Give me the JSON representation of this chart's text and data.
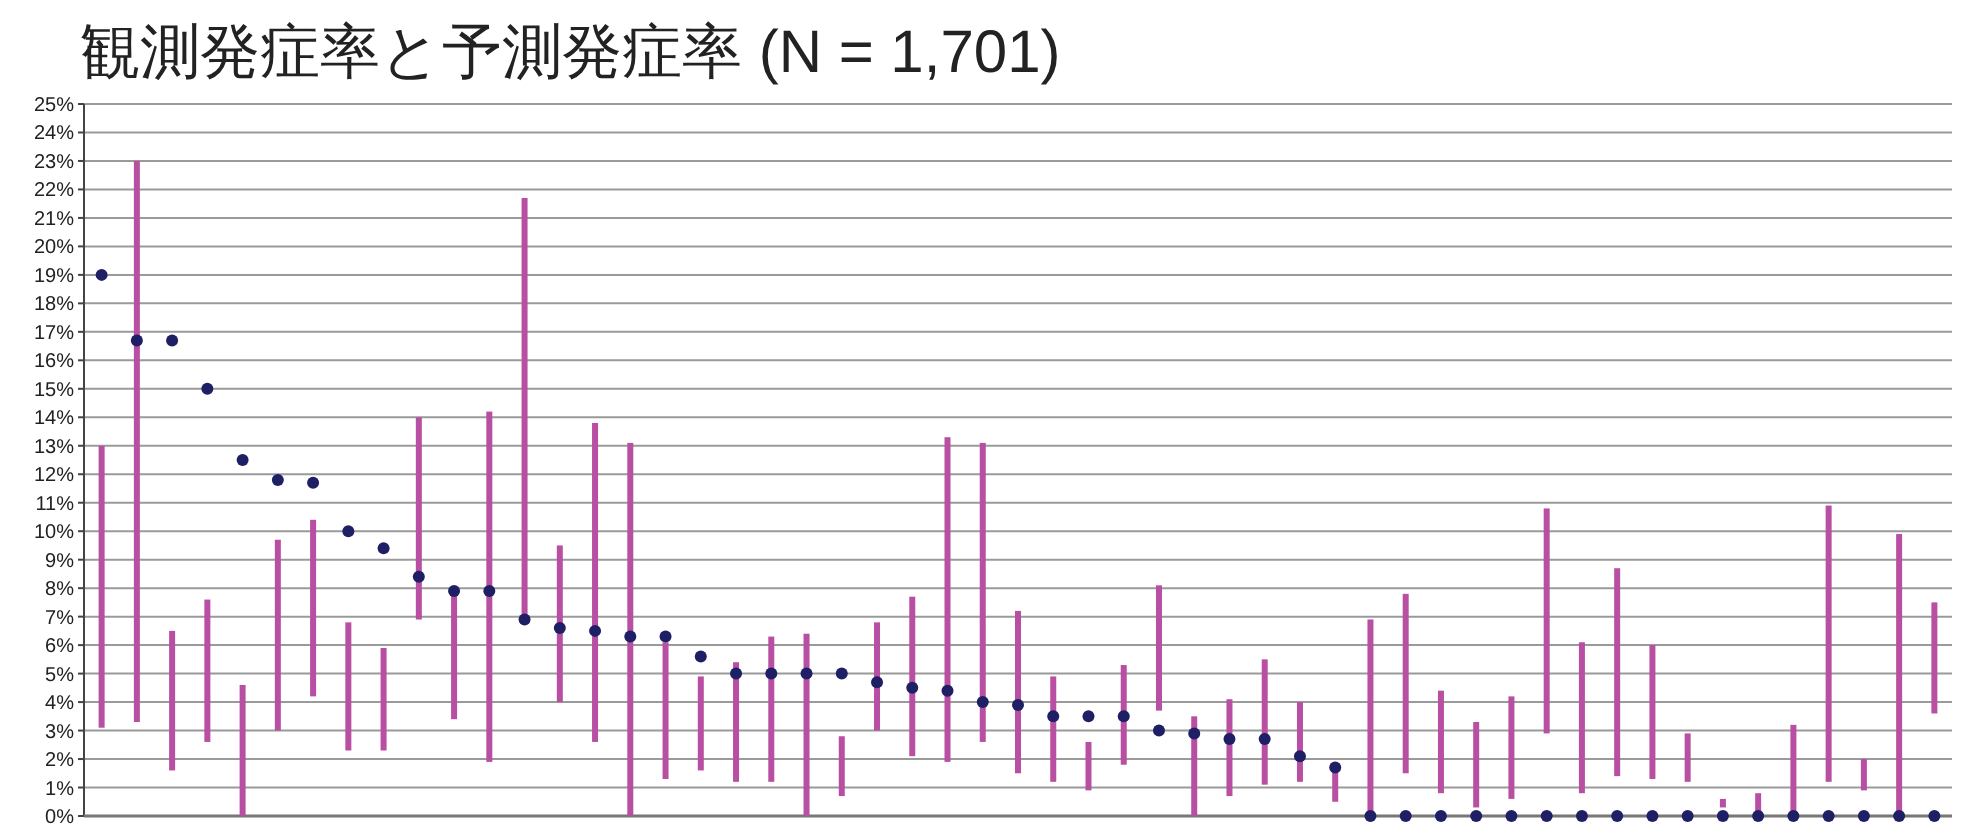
{
  "chart_data": {
    "type": "scatter",
    "title": "観測発症率と予測発症率 (N = 1,701)",
    "categories": [
      null,
      null,
      null,
      null,
      null,
      null,
      null,
      null,
      null,
      null,
      null,
      null,
      null,
      null,
      null,
      null,
      null,
      null,
      null,
      null,
      null,
      null,
      null,
      null,
      null,
      null,
      null,
      null,
      null,
      null,
      null,
      null,
      null,
      null,
      null,
      null,
      null,
      null,
      null,
      null,
      null,
      null,
      null,
      null,
      null,
      null,
      null,
      null,
      null,
      null,
      null,
      null,
      null
    ],
    "series": [
      {
        "type": "bar",
        "color": "#b94fa3",
        "base": [
          3.1,
          3.3,
          1.6,
          2.6,
          0,
          3.0,
          4.2,
          2.3,
          2.3,
          6.9,
          3.4,
          1.9,
          6.9,
          4.0,
          2.6,
          0,
          1.3,
          1.6,
          1.2,
          1.2,
          0,
          0.7,
          3.0,
          2.1,
          1.9,
          2.6,
          1.5,
          1.2,
          0.9,
          1.8,
          3.7,
          0,
          0.7,
          1.1,
          1.2,
          0.5,
          0,
          1.5,
          0.8,
          0.3,
          0.6,
          2.9,
          0.8,
          1.4,
          1.3,
          1.2,
          0.3,
          0,
          0,
          1.2,
          0.9,
          0,
          3.6
        ],
        "values": [
          9.9,
          19.7,
          4.9,
          5.0,
          4.6,
          6.7,
          6.2,
          4.5,
          3.6,
          7.1,
          4.5,
          12.3,
          14.8,
          5.5,
          11.2,
          13.1,
          4.8,
          3.3,
          4.2,
          5.1,
          6.4,
          2.1,
          3.8,
          5.6,
          11.4,
          10.5,
          5.7,
          3.7,
          1.7,
          3.5,
          4.4,
          3.5,
          3.4,
          4.4,
          2.8,
          1.1,
          6.9,
          6.3,
          3.6,
          3.0,
          3.6,
          7.9,
          5.3,
          7.3,
          4.7,
          1.7,
          0.3,
          0.8,
          3.2,
          9.7,
          1.1,
          9.9,
          3.9
        ]
      },
      {
        "color": "#1f1f66",
        "values": [
          19.0,
          16.7,
          16.7,
          15.0,
          12.5,
          11.8,
          11.7,
          10.0,
          9.4,
          8.4,
          7.9,
          7.9,
          6.9,
          6.6,
          6.5,
          6.3,
          6.3,
          5.6,
          5.0,
          5.0,
          5.0,
          5.0,
          4.7,
          4.5,
          4.4,
          4.0,
          3.9,
          3.5,
          3.5,
          3.5,
          3.0,
          2.9,
          2.7,
          2.7,
          2.1,
          1.7,
          0,
          0,
          0,
          0,
          0,
          0,
          0,
          0,
          0,
          0,
          0,
          0,
          0,
          0,
          0,
          0,
          0
        ]
      }
    ],
    "marker": "circle",
    "ylim": [
      0,
      25
    ],
    "yticks": [
      {
        "value": 0,
        "label": "0%"
      },
      {
        "value": 1,
        "label": "1%"
      },
      {
        "value": 2,
        "label": "2%"
      },
      {
        "value": 3,
        "label": "3%"
      },
      {
        "value": 4,
        "label": "4%"
      },
      {
        "value": 5,
        "label": "5%"
      },
      {
        "value": 6,
        "label": "6%"
      },
      {
        "value": 7,
        "label": "7%"
      },
      {
        "value": 8,
        "label": "8%"
      },
      {
        "value": 9,
        "label": "9%"
      },
      {
        "value": 10,
        "label": "10%"
      },
      {
        "value": 11,
        "label": "11%"
      },
      {
        "value": 12,
        "label": "12%"
      },
      {
        "value": 13,
        "label": "13%"
      },
      {
        "value": 14,
        "label": "14%"
      },
      {
        "value": 15,
        "label": "15%"
      },
      {
        "value": 16,
        "label": "16%"
      },
      {
        "value": 17,
        "label": "17%"
      },
      {
        "value": 18,
        "label": "18%"
      },
      {
        "value": 19,
        "label": "19%"
      },
      {
        "value": 20,
        "label": "20%"
      },
      {
        "value": 21,
        "label": "21%"
      },
      {
        "value": 22,
        "label": "22%"
      },
      {
        "value": 23,
        "label": "23%"
      },
      {
        "value": 24,
        "label": "24%"
      },
      {
        "value": 25,
        "label": "25%"
      }
    ],
    "grid": "y"
  }
}
